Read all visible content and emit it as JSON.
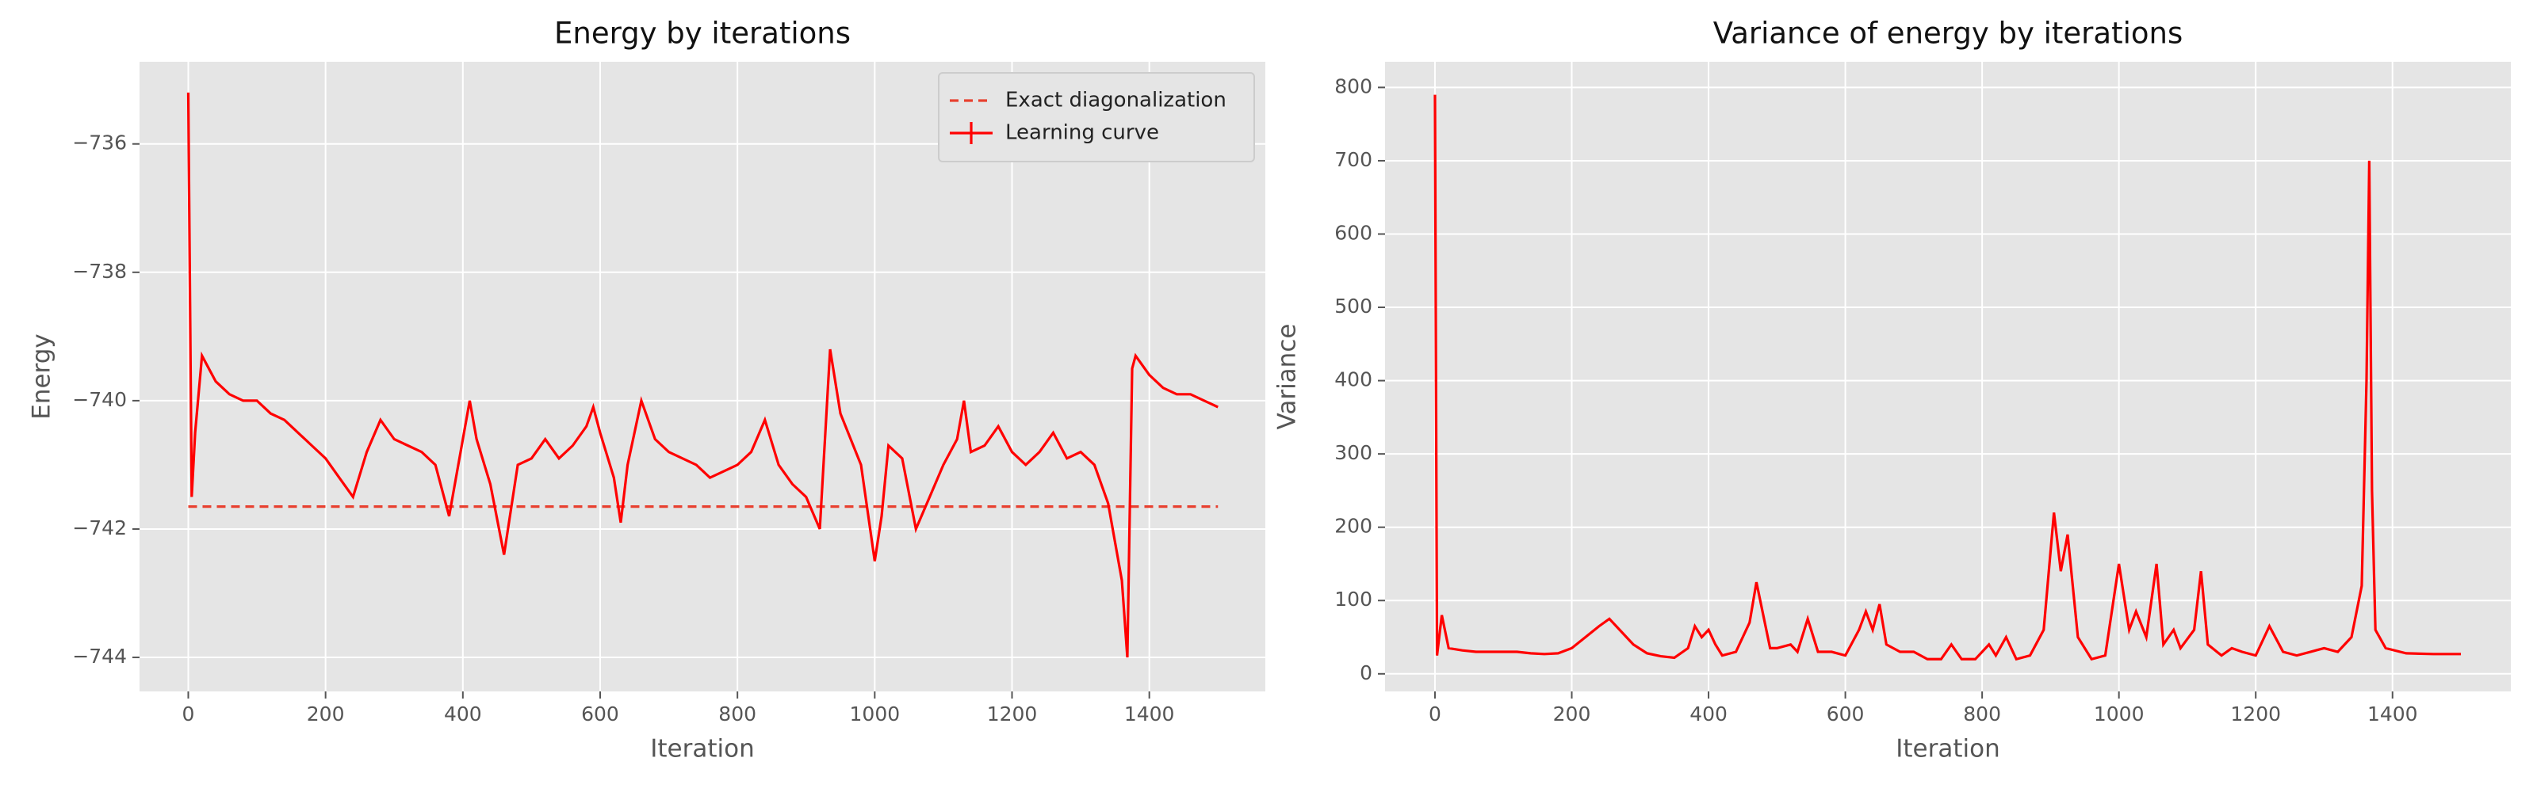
{
  "chart_data": [
    {
      "type": "line",
      "title": "Energy by iterations",
      "xlabel": "Iteration",
      "ylabel": "Energy",
      "xlim": [
        -71,
        1569
      ],
      "ylim": [
        -744.53,
        -734.72
      ],
      "xticks": [
        0,
        200,
        400,
        600,
        800,
        1000,
        1200,
        1400
      ],
      "yticks": [
        {
          "value": -744,
          "label": "−744"
        },
        {
          "value": -742,
          "label": "−742"
        },
        {
          "value": -740,
          "label": "−740"
        },
        {
          "value": -738,
          "label": "−738"
        },
        {
          "value": -736,
          "label": "−736"
        }
      ],
      "grid": true,
      "legend": "upper right",
      "series": [
        {
          "name": "Exact diagonalization",
          "color": "#e8402f",
          "linestyle": "dashed",
          "x": [
            0,
            1500
          ],
          "values": [
            -741.65,
            -741.65
          ]
        },
        {
          "name": "Learning curve",
          "color": "#ff0000",
          "linestyle": "solid",
          "x": [
            0,
            5,
            10,
            20,
            40,
            60,
            80,
            100,
            120,
            140,
            160,
            180,
            200,
            220,
            240,
            260,
            280,
            300,
            320,
            340,
            360,
            380,
            400,
            410,
            420,
            440,
            460,
            480,
            500,
            520,
            540,
            560,
            580,
            590,
            600,
            620,
            630,
            640,
            660,
            680,
            700,
            720,
            740,
            760,
            780,
            800,
            820,
            840,
            860,
            880,
            900,
            920,
            935,
            950,
            980,
            1000,
            1010,
            1020,
            1040,
            1060,
            1080,
            1100,
            1120,
            1130,
            1140,
            1160,
            1180,
            1200,
            1220,
            1240,
            1260,
            1280,
            1300,
            1320,
            1340,
            1360,
            1368,
            1375,
            1380,
            1400,
            1420,
            1440,
            1460,
            1480,
            1500
          ],
          "values": [
            -735.2,
            -741.5,
            -740.5,
            -739.3,
            -739.7,
            -739.9,
            -740.0,
            -740.0,
            -740.2,
            -740.3,
            -740.5,
            -740.7,
            -740.9,
            -741.2,
            -741.5,
            -740.8,
            -740.3,
            -740.6,
            -740.7,
            -740.8,
            -741.0,
            -741.8,
            -740.6,
            -740.0,
            -740.6,
            -741.3,
            -742.4,
            -741.0,
            -740.9,
            -740.6,
            -740.9,
            -740.7,
            -740.4,
            -740.1,
            -740.5,
            -741.2,
            -741.9,
            -741.0,
            -740.0,
            -740.6,
            -740.8,
            -740.9,
            -741.0,
            -741.2,
            -741.1,
            -741.0,
            -740.8,
            -740.3,
            -741.0,
            -741.3,
            -741.5,
            -742.0,
            -739.2,
            -740.2,
            -741.0,
            -742.5,
            -741.8,
            -740.7,
            -740.9,
            -742.0,
            -741.5,
            -741.0,
            -740.6,
            -740.0,
            -740.8,
            -740.7,
            -740.4,
            -740.8,
            -741.0,
            -740.8,
            -740.5,
            -740.9,
            -740.8,
            -741.0,
            -741.6,
            -742.8,
            -744.0,
            -739.5,
            -739.3,
            -739.6,
            -739.8,
            -739.9,
            -739.9,
            -740.0,
            -740.1
          ]
        }
      ]
    },
    {
      "type": "line",
      "title": "Variance of energy by iterations",
      "xlabel": "Iteration",
      "ylabel": "Variance",
      "xlim": [
        -73,
        1573
      ],
      "ylim": [
        -24,
        835
      ],
      "xticks": [
        0,
        200,
        400,
        600,
        800,
        1000,
        1200,
        1400
      ],
      "yticks": [
        0,
        100,
        200,
        300,
        400,
        500,
        600,
        700,
        800
      ],
      "grid": true,
      "series": [
        {
          "color": "#ff0000",
          "linestyle": "solid",
          "x": [
            0,
            3,
            10,
            20,
            40,
            60,
            80,
            100,
            120,
            140,
            160,
            180,
            200,
            220,
            240,
            255,
            270,
            290,
            310,
            330,
            350,
            370,
            380,
            390,
            400,
            410,
            420,
            440,
            460,
            470,
            480,
            490,
            500,
            520,
            530,
            545,
            560,
            580,
            600,
            620,
            630,
            640,
            650,
            660,
            680,
            700,
            720,
            740,
            755,
            770,
            790,
            810,
            820,
            835,
            850,
            870,
            890,
            905,
            915,
            925,
            940,
            960,
            980,
            1000,
            1015,
            1025,
            1040,
            1055,
            1065,
            1080,
            1090,
            1110,
            1120,
            1130,
            1150,
            1165,
            1180,
            1200,
            1220,
            1240,
            1260,
            1280,
            1300,
            1320,
            1340,
            1355,
            1362,
            1366,
            1370,
            1375,
            1390,
            1420,
            1460,
            1500
          ],
          "values": [
            790,
            25,
            80,
            35,
            32,
            30,
            30,
            30,
            30,
            28,
            27,
            28,
            35,
            50,
            65,
            75,
            60,
            40,
            28,
            24,
            22,
            35,
            65,
            50,
            60,
            40,
            25,
            30,
            70,
            125,
            80,
            35,
            35,
            40,
            30,
            75,
            30,
            30,
            25,
            60,
            85,
            60,
            95,
            40,
            30,
            30,
            20,
            20,
            40,
            20,
            20,
            40,
            25,
            50,
            20,
            25,
            60,
            220,
            140,
            190,
            50,
            20,
            25,
            150,
            60,
            85,
            50,
            150,
            40,
            60,
            35,
            60,
            140,
            40,
            25,
            35,
            30,
            25,
            65,
            30,
            25,
            30,
            35,
            30,
            50,
            120,
            400,
            700,
            250,
            60,
            35,
            28,
            27,
            27
          ]
        }
      ]
    }
  ]
}
